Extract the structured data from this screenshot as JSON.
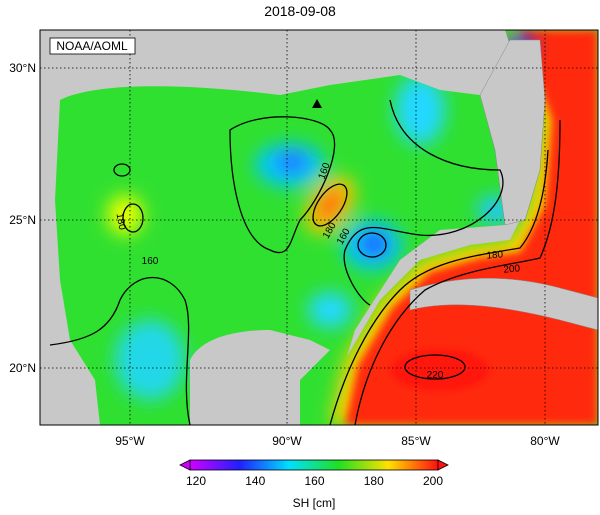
{
  "title": "2018-09-08",
  "source_label": "NOAA/AOML",
  "latitude_labels": [
    "30°N",
    "25°N",
    "20°N"
  ],
  "longitude_labels": [
    "95°W",
    "90°W",
    "85°W",
    "80°W"
  ],
  "contour_labels": [
    "180",
    "160",
    "160",
    "180",
    "160",
    "180",
    "200",
    "220"
  ],
  "colorbar": {
    "ticks": [
      120,
      140,
      160,
      180,
      200
    ],
    "label": "SH [cm]"
  }
}
